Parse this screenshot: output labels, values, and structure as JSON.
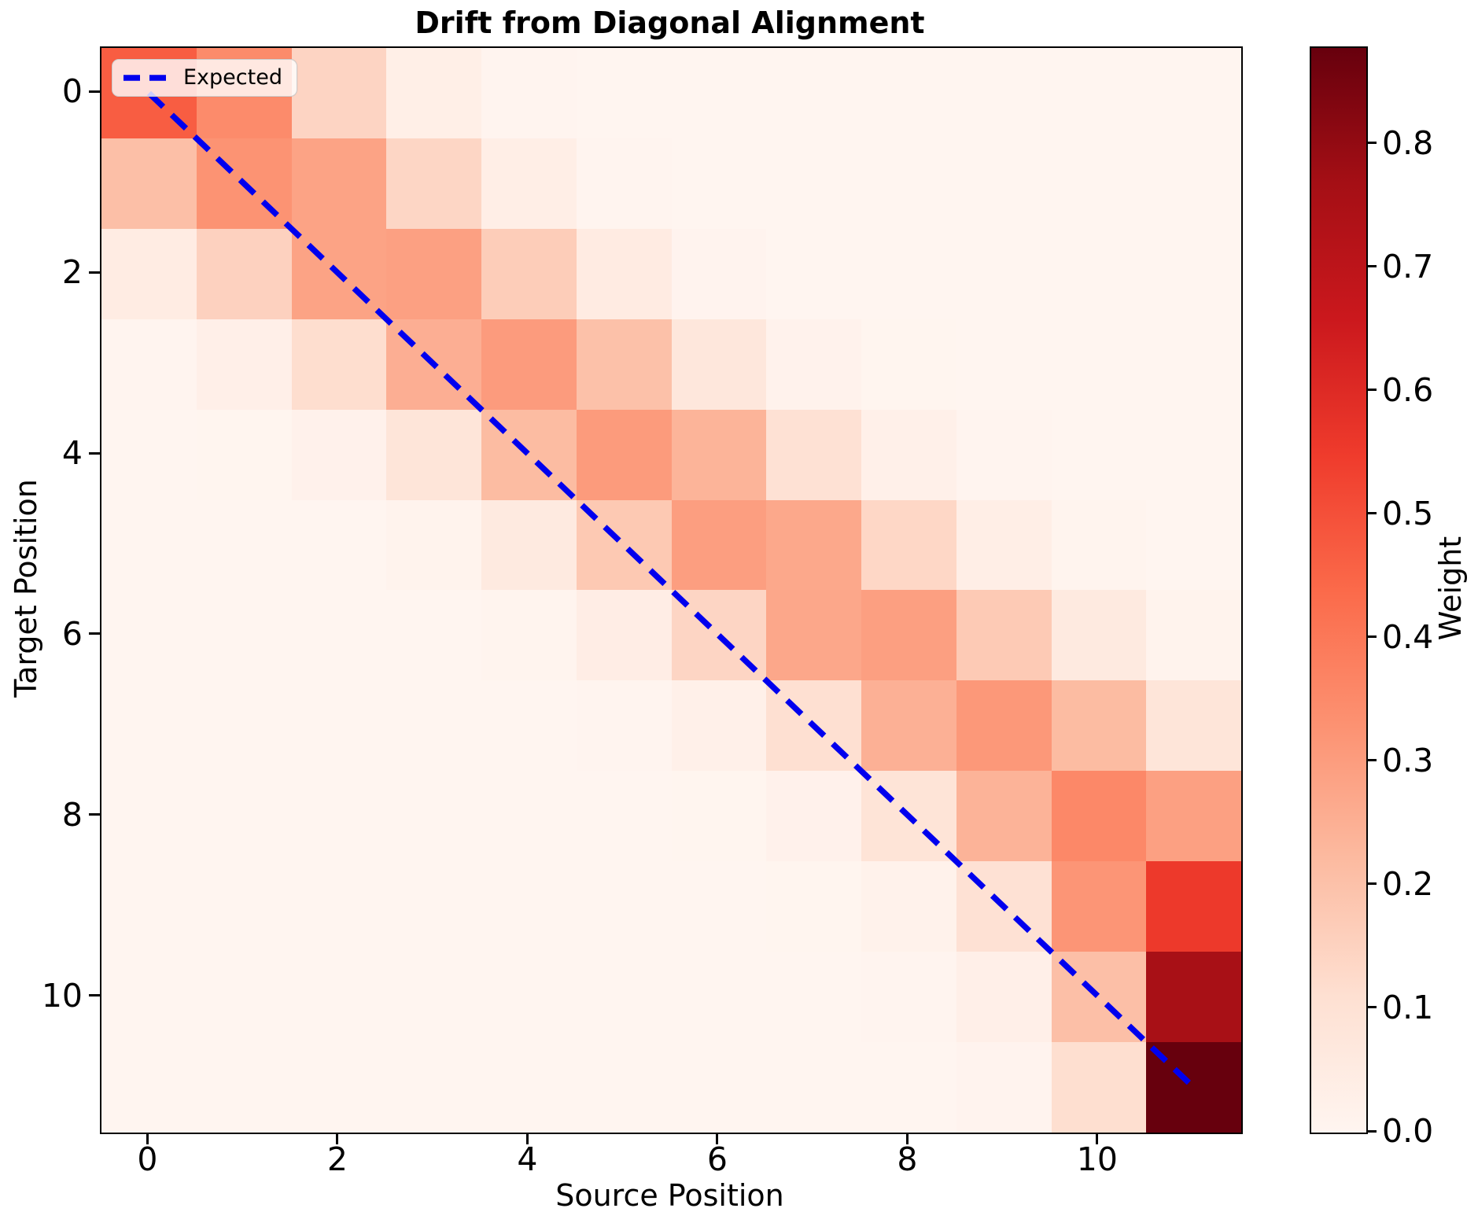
{
  "figure": {
    "title": "Drift from Diagonal Alignment",
    "background_color": "#ffffff"
  },
  "chart_data": {
    "type": "heatmap",
    "title": "Drift from Diagonal Alignment",
    "xlabel": "Source Position",
    "ylabel": "Target Position",
    "n_rows": 12,
    "n_cols": 12,
    "x_ticks": [
      0,
      2,
      4,
      6,
      8,
      10
    ],
    "y_ticks": [
      0,
      2,
      4,
      6,
      8,
      10
    ],
    "grid": false,
    "values": [
      [
        0.47,
        0.349,
        0.144,
        0.033,
        0.004,
        0.0,
        0.0,
        0.0,
        0.0,
        0.0,
        0.0,
        0.0
      ],
      [
        0.207,
        0.327,
        0.285,
        0.138,
        0.037,
        0.005,
        0.0,
        0.0,
        0.0,
        0.0,
        0.0,
        0.0
      ],
      [
        0.046,
        0.153,
        0.284,
        0.291,
        0.165,
        0.052,
        0.009,
        0.001,
        0.0,
        0.0,
        0.0,
        0.0
      ],
      [
        0.004,
        0.03,
        0.116,
        0.253,
        0.304,
        0.202,
        0.074,
        0.015,
        0.002,
        0.0,
        0.0,
        0.0
      ],
      [
        0.0,
        0.002,
        0.019,
        0.085,
        0.217,
        0.306,
        0.239,
        0.103,
        0.025,
        0.003,
        0.0,
        0.0
      ],
      [
        0.0,
        0.0,
        0.001,
        0.011,
        0.06,
        0.179,
        0.296,
        0.271,
        0.137,
        0.038,
        0.006,
        0.001
      ],
      [
        0.0,
        0.0,
        0.0,
        0.001,
        0.006,
        0.04,
        0.141,
        0.274,
        0.294,
        0.175,
        0.057,
        0.01
      ],
      [
        0.0,
        0.0,
        0.0,
        0.0,
        0.0,
        0.004,
        0.026,
        0.109,
        0.248,
        0.312,
        0.218,
        0.084
      ],
      [
        0.0,
        0.0,
        0.0,
        0.0,
        0.0,
        0.0,
        0.002,
        0.019,
        0.09,
        0.241,
        0.356,
        0.291
      ],
      [
        0.0,
        0.0,
        0.0,
        0.0,
        0.0,
        0.0,
        0.0,
        0.002,
        0.018,
        0.103,
        0.321,
        0.556
      ],
      [
        0.0,
        0.0,
        0.0,
        0.0,
        0.0,
        0.0,
        0.0,
        0.0,
        0.003,
        0.031,
        0.207,
        0.759
      ],
      [
        0.0,
        0.0,
        0.0,
        0.0,
        0.0,
        0.0,
        0.0,
        0.0,
        0.0,
        0.008,
        0.114,
        0.878
      ]
    ],
    "colormap": "Reds",
    "colorbar": {
      "label": "Weight",
      "vmin": 0.0,
      "vmax": 0.878,
      "ticks": [
        0.0,
        0.1,
        0.2,
        0.3,
        0.4,
        0.5,
        0.6,
        0.7,
        0.8
      ],
      "position": "right"
    },
    "expected_line": {
      "label": "Expected",
      "color": "#0000ee",
      "style": "dashed",
      "from_cell": [
        0,
        0
      ],
      "to_cell": [
        11,
        11
      ]
    },
    "legend": {
      "position": "upper left",
      "entries": [
        "Expected"
      ]
    }
  },
  "colors": {
    "line_blue": "#0000ee",
    "spine_black": "#000000",
    "legend_border": "#cccccc",
    "reds_anchors": [
      [
        0.0,
        [
          255,
          245,
          240
        ]
      ],
      [
        0.125,
        [
          254,
          224,
          210
        ]
      ],
      [
        0.25,
        [
          252,
          187,
          161
        ]
      ],
      [
        0.375,
        [
          252,
          146,
          114
        ]
      ],
      [
        0.5,
        [
          251,
          106,
          74
        ]
      ],
      [
        0.625,
        [
          239,
          59,
          44
        ]
      ],
      [
        0.75,
        [
          203,
          24,
          29
        ]
      ],
      [
        0.875,
        [
          165,
          15,
          21
        ]
      ],
      [
        1.0,
        [
          103,
          0,
          13
        ]
      ]
    ]
  }
}
